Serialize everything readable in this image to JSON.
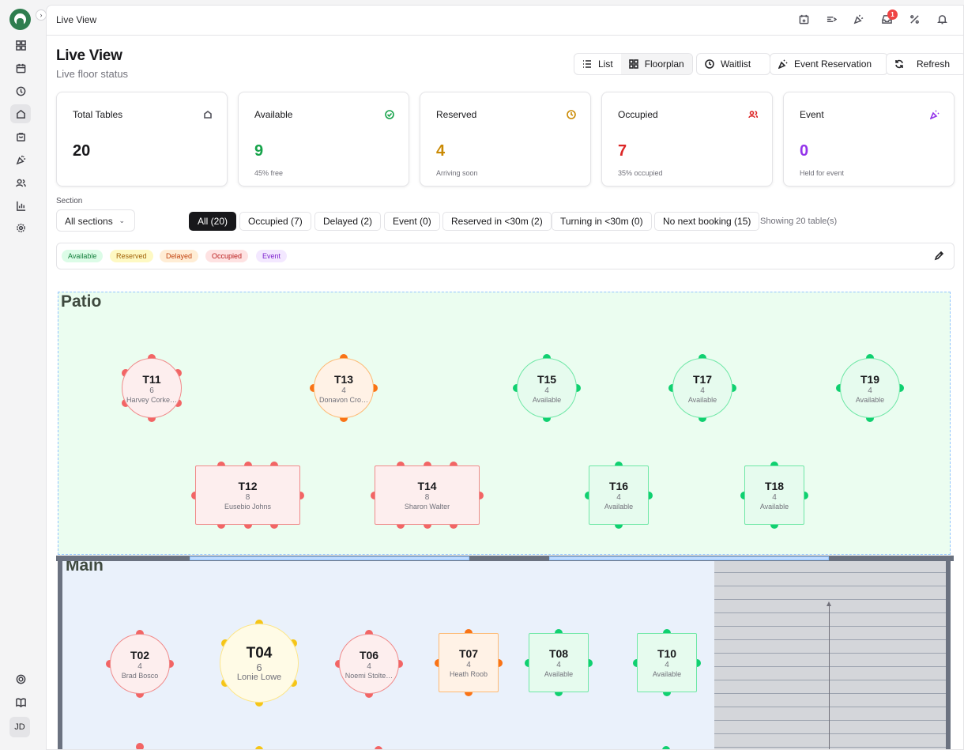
{
  "app": {
    "breadcrumb": "Live View",
    "user_initials": "JD",
    "notification_count": "1"
  },
  "rail_icons": [
    "grid-icon",
    "calendar-icon",
    "clock-icon",
    "floorplan-icon",
    "bag-icon",
    "party-popper-icon",
    "users-icon",
    "bar-chart-icon",
    "settings-icon"
  ],
  "topbar_icons": [
    "calendar-add-icon",
    "list-arrow-icon",
    "party-popper-icon",
    "inbox-icon",
    "percent-icon",
    "bell-icon"
  ],
  "header": {
    "title": "Live View",
    "subtitle": "Live floor status",
    "view_list": "List",
    "view_floorplan": "Floorplan",
    "waitlist": "Waitlist",
    "event_reservation": "Event Reservation",
    "refresh": "Refresh"
  },
  "stats": [
    {
      "label": "Total Tables",
      "value": "20",
      "sub": "",
      "color": "#18181b",
      "icon": "floorplan-icon"
    },
    {
      "label": "Available",
      "value": "9",
      "sub": "45% free",
      "color": "#16a34a",
      "icon": "check-circle-icon"
    },
    {
      "label": "Reserved",
      "value": "4",
      "sub": "Arriving soon",
      "color": "#ca8a04",
      "icon": "clock-icon"
    },
    {
      "label": "Occupied",
      "value": "7",
      "sub": "35% occupied",
      "color": "#dc2626",
      "icon": "users-icon"
    },
    {
      "label": "Event",
      "value": "0",
      "sub": "Held for event",
      "color": "#9333ea",
      "icon": "party-popper-icon"
    }
  ],
  "filters": {
    "section_label": "Section",
    "section_value": "All sections",
    "chips": [
      "All (20)",
      "Occupied (7)",
      "Delayed (2)",
      "Event (0)",
      "Reserved in <30m (2)",
      "Turning in <30m (0)",
      "No next booking (15)"
    ],
    "showing": "Showing 20 table(s)"
  },
  "legend": [
    {
      "label": "Available",
      "bg": "#dcfce7",
      "fg": "#15803d"
    },
    {
      "label": "Reserved",
      "bg": "#fef9c3",
      "fg": "#a16207"
    },
    {
      "label": "Delayed",
      "bg": "#ffedd5",
      "fg": "#c2410c"
    },
    {
      "label": "Occupied",
      "bg": "#fee2e2",
      "fg": "#b91c1c"
    },
    {
      "label": "Event",
      "bg": "#f3e8ff",
      "fg": "#7e22ce"
    }
  ],
  "zones": {
    "patio": "Patio",
    "main": "Main"
  },
  "tables": [
    {
      "id": "T11",
      "cap": "6",
      "guest": "Harvey Corke…",
      "status": "occupied"
    },
    {
      "id": "T13",
      "cap": "4",
      "guest": "Donavon Cro…",
      "status": "delayed"
    },
    {
      "id": "T15",
      "cap": "4",
      "guest": "Available",
      "status": "available"
    },
    {
      "id": "T17",
      "cap": "4",
      "guest": "Available",
      "status": "available"
    },
    {
      "id": "T19",
      "cap": "4",
      "guest": "Available",
      "status": "available"
    },
    {
      "id": "T12",
      "cap": "8",
      "guest": "Eusebio Johns",
      "status": "occupied"
    },
    {
      "id": "T14",
      "cap": "8",
      "guest": "Sharon Walter",
      "status": "occupied"
    },
    {
      "id": "T16",
      "cap": "4",
      "guest": "Available",
      "status": "available"
    },
    {
      "id": "T18",
      "cap": "4",
      "guest": "Available",
      "status": "available"
    },
    {
      "id": "T02",
      "cap": "4",
      "guest": "Brad Bosco",
      "status": "occupied"
    },
    {
      "id": "T04",
      "cap": "6",
      "guest": "Lonie Lowe",
      "status": "reserved"
    },
    {
      "id": "T06",
      "cap": "4",
      "guest": "Noemi Stolte…",
      "status": "occupied"
    },
    {
      "id": "T07",
      "cap": "4",
      "guest": "Heath Roob",
      "status": "delayed"
    },
    {
      "id": "T08",
      "cap": "4",
      "guest": "Available",
      "status": "available"
    },
    {
      "id": "T10",
      "cap": "4",
      "guest": "Available",
      "status": "available"
    }
  ]
}
